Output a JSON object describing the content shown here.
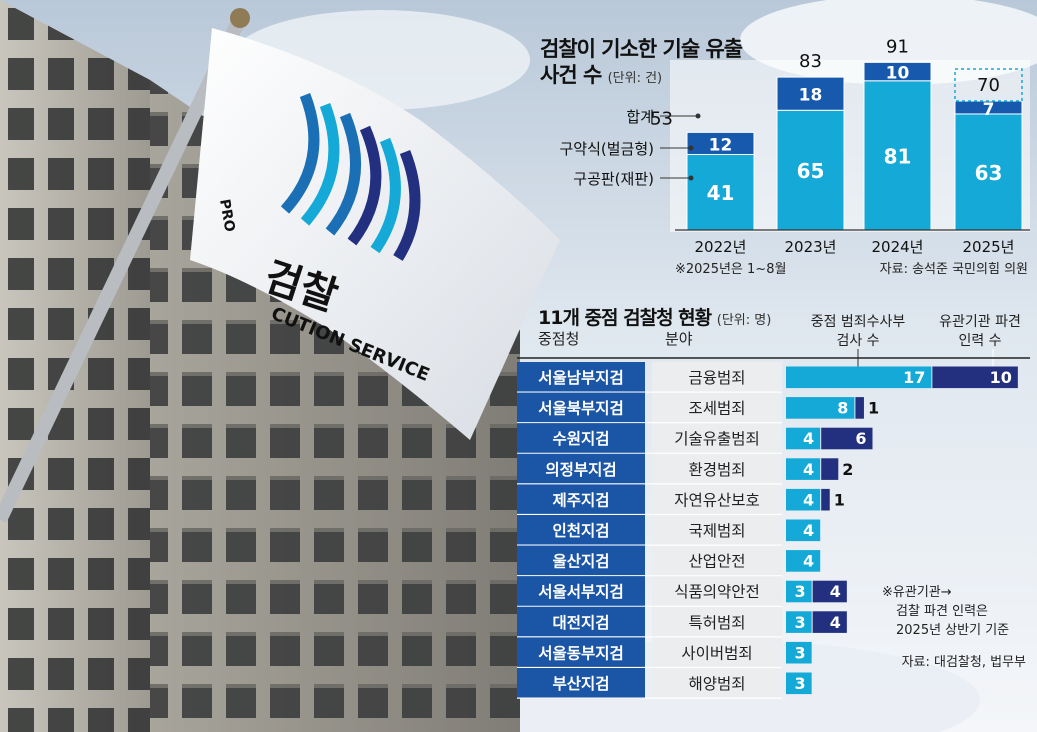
{
  "chart_data": [
    {
      "type": "bar",
      "title": "검찰이 기소한 기술 유출 사건 수",
      "unit": "(단위: 건)",
      "categories": [
        "2022년",
        "2023년",
        "2024년",
        "2025년"
      ],
      "series": [
        {
          "name": "구공판(재판)",
          "values": [
            41,
            65,
            81,
            63
          ],
          "color": "#14a9d6"
        },
        {
          "name": "구약식(벌금형)",
          "values": [
            12,
            18,
            10,
            7
          ],
          "color": "#1659ad"
        }
      ],
      "totals": [
        53,
        83,
        91,
        70
      ],
      "total_label": "합계",
      "ylim": [
        0,
        95
      ],
      "note": "※2025년은 1~8월",
      "source": "자료: 송석준 국민의힘 의원"
    },
    {
      "type": "bar",
      "orientation": "horizontal",
      "title": "11개 중점 검찰청 현황",
      "unit": "(단위: 명)",
      "col_office": "중점청",
      "col_field": "분야",
      "series_labels": [
        "중점 범죄수사부 검사 수",
        "유관기관 파견 인력 수"
      ],
      "series": [
        {
          "name": "중점 범죄수사부 검사 수",
          "color": "#14a9d6"
        },
        {
          "name": "유관기관 파견 인력 수",
          "color": "#23307f"
        }
      ],
      "rows": [
        {
          "office": "서울남부지검",
          "field": "금융범죄",
          "prosecutors": 17,
          "dispatched": 10
        },
        {
          "office": "서울북부지검",
          "field": "조세범죄",
          "prosecutors": 8,
          "dispatched": 1
        },
        {
          "office": "수원지검",
          "field": "기술유출범죄",
          "prosecutors": 4,
          "dispatched": 6
        },
        {
          "office": "의정부지검",
          "field": "환경범죄",
          "prosecutors": 4,
          "dispatched": 2
        },
        {
          "office": "제주지검",
          "field": "자연유산보호",
          "prosecutors": 4,
          "dispatched": 1
        },
        {
          "office": "인천지검",
          "field": "국제범죄",
          "prosecutors": 4,
          "dispatched": 0
        },
        {
          "office": "울산지검",
          "field": "산업안전",
          "prosecutors": 4,
          "dispatched": 0
        },
        {
          "office": "서울서부지검",
          "field": "식품의약안전",
          "prosecutors": 3,
          "dispatched": 4
        },
        {
          "office": "대전지검",
          "field": "특허범죄",
          "prosecutors": 3,
          "dispatched": 4
        },
        {
          "office": "서울동부지검",
          "field": "사이버범죄",
          "prosecutors": 3,
          "dispatched": 0
        },
        {
          "office": "부산지검",
          "field": "해양범죄",
          "prosecutors": 3,
          "dispatched": 0
        }
      ],
      "note_lines": [
        "※유관기관→",
        "검찰 파견 인력은",
        "2025년 상반기 기준"
      ],
      "source": "자료: 대검찰청, 법무부"
    }
  ],
  "photo": {
    "flag_word": "검찰",
    "flag_text": "CUTION SERVICE",
    "flag_side_text": "PRO"
  }
}
